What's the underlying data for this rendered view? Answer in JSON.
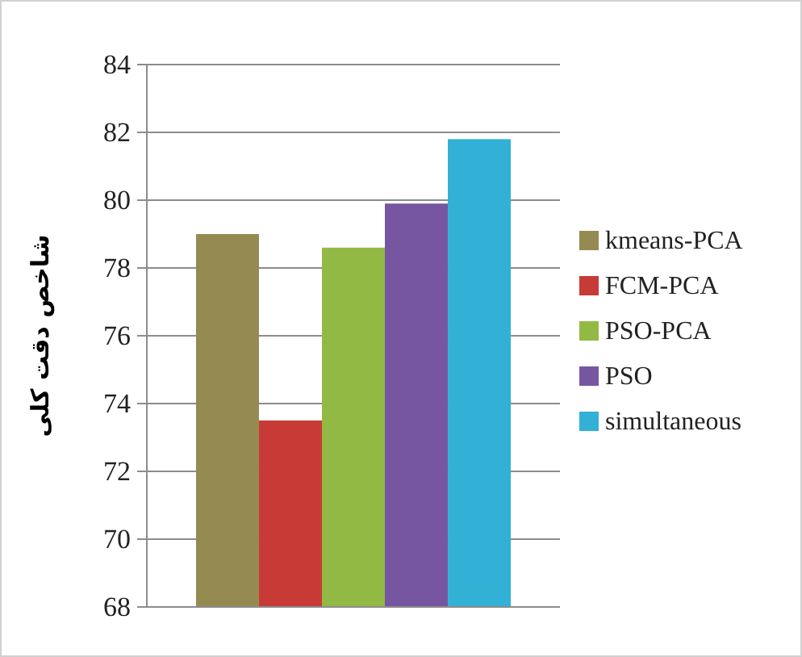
{
  "chart_data": {
    "type": "bar",
    "ylabel": "شاخص دقت کلی",
    "categories": [
      null
    ],
    "series": [
      {
        "name": "kmeans-PCA",
        "color": "#958b52",
        "values": [
          79.0
        ]
      },
      {
        "name": "FCM-PCA",
        "color": "#c83a35",
        "values": [
          73.5
        ]
      },
      {
        "name": "PSO-PCA",
        "color": "#93b945",
        "values": [
          78.6
        ]
      },
      {
        "name": "PSO",
        "color": "#7656a0",
        "values": [
          79.9
        ]
      },
      {
        "name": "simultaneous",
        "color": "#33b0d6",
        "values": [
          81.8
        ]
      }
    ],
    "ylim": [
      68,
      84
    ],
    "yticks": [
      68,
      70,
      72,
      74,
      76,
      78,
      80,
      82,
      84
    ],
    "grid": "y",
    "legend": "right"
  }
}
